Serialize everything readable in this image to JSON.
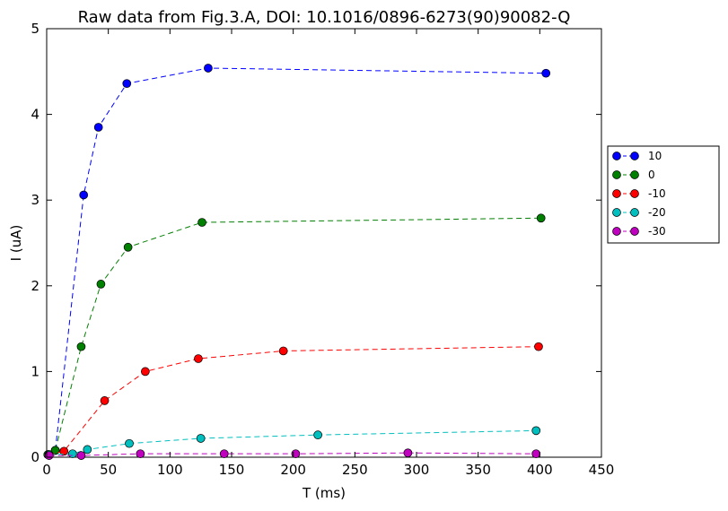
{
  "chart_data": {
    "type": "line",
    "title": "Raw data from Fig.3.A, DOI: 10.1016/0896-6273(90)90082-Q",
    "xlabel": "T (ms)",
    "ylabel": "I (uA)",
    "xlim": [
      0,
      450
    ],
    "ylim": [
      0,
      5
    ],
    "xticks": [
      0,
      50,
      100,
      150,
      200,
      250,
      300,
      350,
      400,
      450
    ],
    "yticks": [
      0,
      1,
      2,
      3,
      4,
      5
    ],
    "grid": false,
    "legend_position": "right",
    "line_style": "dashed",
    "series": [
      {
        "name": "10",
        "color": "#0000ff",
        "x": [
          1,
          7,
          30,
          42,
          65,
          131,
          405
        ],
        "y": [
          0.03,
          0.08,
          3.06,
          3.85,
          4.36,
          4.54,
          4.48
        ]
      },
      {
        "name": "0",
        "color": "#008000",
        "x": [
          1,
          7,
          28,
          44,
          66,
          126,
          401
        ],
        "y": [
          0.03,
          0.08,
          1.29,
          2.02,
          2.45,
          2.74,
          2.79
        ]
      },
      {
        "name": "-10",
        "color": "#ff0000",
        "x": [
          2,
          14,
          47,
          80,
          123,
          192,
          399
        ],
        "y": [
          0.03,
          0.07,
          0.66,
          1.0,
          1.15,
          1.24,
          1.29
        ]
      },
      {
        "name": "-20",
        "color": "#00bfbf",
        "x": [
          2,
          21,
          33,
          67,
          125,
          220,
          397
        ],
        "y": [
          0.03,
          0.04,
          0.09,
          0.16,
          0.22,
          0.26,
          0.31
        ]
      },
      {
        "name": "-30",
        "color": "#bf00bf",
        "x": [
          2,
          28,
          76,
          144,
          202,
          293,
          397
        ],
        "y": [
          0.02,
          0.02,
          0.04,
          0.04,
          0.04,
          0.05,
          0.04
        ]
      }
    ]
  }
}
